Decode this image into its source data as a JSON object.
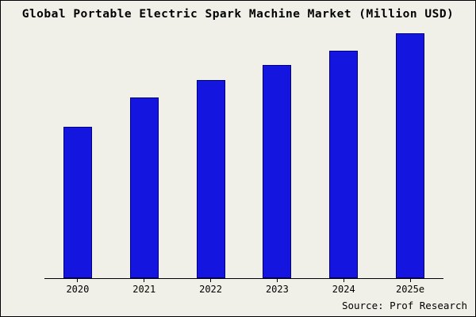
{
  "chart_data": {
    "type": "bar",
    "title": "Global Portable Electric Spark Machine Market (Million USD)",
    "categories": [
      "2020",
      "2021",
      "2022",
      "2023",
      "2024",
      "2025e"
    ],
    "values": [
      62,
      74,
      81,
      87,
      93,
      100
    ],
    "ylim": [
      0,
      104
    ],
    "xlabel": "",
    "ylabel": "",
    "grid": false,
    "legend": false,
    "bar_color": "#1515e0",
    "bar_border_color": "#000080",
    "background_color": "#f0f0e8",
    "source": "Source: Prof Research"
  }
}
